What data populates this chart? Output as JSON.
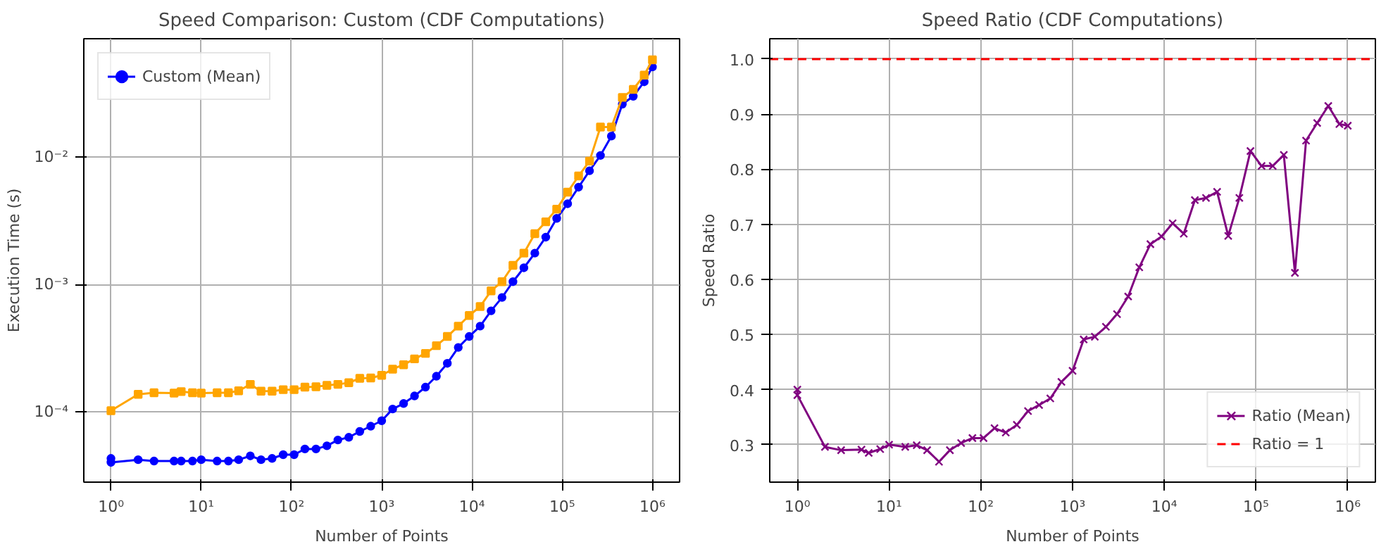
{
  "chart_data": [
    {
      "type": "line",
      "title": "Speed Comparison: Custom (CDF Computations)",
      "xlabel": "Number of Points",
      "ylabel": "Execution Time (s)",
      "log": "xy",
      "grid": true,
      "legend": "top left",
      "x": [
        1,
        1,
        2,
        3,
        5,
        6,
        8,
        10,
        15,
        20,
        26,
        35,
        46,
        61,
        81,
        107,
        141,
        187,
        247,
        327,
        432,
        572,
        756,
        1000,
        1322,
        1748,
        2310,
        3054,
        4037,
        5337,
        7055,
        9326,
        12328,
        16296,
        21542,
        28476,
        37642,
        49758,
        65774,
        86946,
        114934,
        151930,
        200833,
        265478,
        350931,
        463891,
        613209,
        810591,
        1000000
      ],
      "xlim": [
        0.5,
        2000000
      ],
      "xticks": [
        {
          "value": 1,
          "label": "10⁰"
        },
        {
          "value": 10,
          "label": "10¹"
        },
        {
          "value": 100,
          "label": "10²"
        },
        {
          "value": 1000,
          "label": "10³"
        },
        {
          "value": 10000,
          "label": "10⁴"
        },
        {
          "value": 100000,
          "label": "10⁵"
        },
        {
          "value": 1000000,
          "label": "10⁶"
        }
      ],
      "ylim": [
        2.8e-05,
        0.085
      ],
      "yticks": [
        {
          "value": 0.0001,
          "label": "10⁻⁴"
        },
        {
          "value": 0.001,
          "label": "10⁻³"
        },
        {
          "value": 0.01,
          "label": "10⁻²"
        }
      ],
      "series": [
        {
          "name": "Custom (Mean)",
          "color": "#0000ff",
          "marker": "circle",
          "values": [
            4.3e-05,
            4e-05,
            4.2e-05,
            4.1e-05,
            4.1e-05,
            4.1e-05,
            4.1e-05,
            4.2e-05,
            4.1e-05,
            4.1e-05,
            4.2e-05,
            4.5e-05,
            4.2e-05,
            4.3e-05,
            4.6e-05,
            4.6e-05,
            5.1e-05,
            5.1e-05,
            5.4e-05,
            6e-05,
            6.3e-05,
            7e-05,
            7.7e-05,
            8.5e-05,
            0.000105,
            0.000116,
            0.000133,
            0.000156,
            0.00019,
            0.00024,
            0.00032,
            0.00039,
            0.00047,
            0.00062,
            0.00079,
            0.00105,
            0.00135,
            0.00176,
            0.00235,
            0.0033,
            0.0043,
            0.0058,
            0.0078,
            0.0103,
            0.0146,
            0.026,
            0.03,
            0.039,
            0.051
          ]
        },
        {
          "color": "#ffa500",
          "marker": "square",
          "values": [
            null,
            0.000102,
            0.000137,
            0.000141,
            0.00014,
            0.000144,
            0.000141,
            0.00014,
            0.000141,
            0.000141,
            0.000146,
            0.000164,
            0.000145,
            0.000145,
            0.000149,
            0.000149,
            0.000156,
            0.000157,
            0.000161,
            0.000164,
            0.000169,
            0.000183,
            0.000184,
            0.000193,
            0.000216,
            0.000234,
            0.00026,
            0.000287,
            0.00033,
            0.00039,
            0.00047,
            0.00057,
            0.00067,
            0.00089,
            0.00105,
            0.00141,
            0.00176,
            0.0025,
            0.0031,
            0.0039,
            0.0053,
            0.0071,
            0.0093,
            0.0172,
            0.0172,
            0.0294,
            0.034,
            0.044,
            0.058
          ]
        }
      ]
    },
    {
      "type": "line",
      "title": "Speed Ratio (CDF Computations)",
      "xlabel": "Number of Points",
      "ylabel": "Speed Ratio",
      "log": "x",
      "grid": true,
      "legend": "bottom right",
      "x": [
        1,
        1,
        2,
        3,
        5,
        6,
        8,
        10,
        15,
        20,
        26,
        35,
        46,
        61,
        81,
        107,
        141,
        187,
        247,
        327,
        432,
        572,
        756,
        1000,
        1322,
        1748,
        2310,
        3054,
        4037,
        5337,
        7055,
        9326,
        12328,
        16296,
        21542,
        28476,
        37642,
        49758,
        65774,
        86946,
        114934,
        151930,
        200833,
        265478,
        350931,
        463891,
        613209,
        810591,
        1000000
      ],
      "xlim": [
        0.5,
        2000000
      ],
      "xticks": [
        {
          "value": 1,
          "label": "10⁰"
        },
        {
          "value": 10,
          "label": "10¹"
        },
        {
          "value": 100,
          "label": "10²"
        },
        {
          "value": 1000,
          "label": "10³"
        },
        {
          "value": 10000,
          "label": "10⁴"
        },
        {
          "value": 100000,
          "label": "10⁵"
        },
        {
          "value": 1000000,
          "label": "10⁶"
        }
      ],
      "ylim": [
        0.232,
        1.037
      ],
      "yticks": [
        {
          "value": 0.3,
          "label": "0.3"
        },
        {
          "value": 0.4,
          "label": "0.4"
        },
        {
          "value": 0.5,
          "label": "0.5"
        },
        {
          "value": 0.6,
          "label": "0.6"
        },
        {
          "value": 0.7,
          "label": "0.7"
        },
        {
          "value": 0.8,
          "label": "0.8"
        },
        {
          "value": 0.9,
          "label": "0.9"
        },
        {
          "value": 1.0,
          "label": "1.0"
        }
      ],
      "series": [
        {
          "name": "Ratio (Mean)",
          "color": "#800080",
          "marker": "cross",
          "values": [
            0.4,
            0.39,
            0.296,
            0.29,
            0.291,
            0.285,
            0.292,
            0.3,
            0.296,
            0.299,
            0.29,
            0.269,
            0.29,
            0.303,
            0.312,
            0.312,
            0.33,
            0.322,
            0.336,
            0.361,
            0.372,
            0.384,
            0.414,
            0.434,
            0.491,
            0.496,
            0.514,
            0.537,
            0.569,
            0.622,
            0.664,
            0.678,
            0.702,
            0.683,
            0.744,
            0.748,
            0.759,
            0.679,
            0.748,
            0.833,
            0.806,
            0.806,
            0.826,
            0.612,
            0.852,
            0.884,
            0.915,
            0.882,
            0.879
          ]
        }
      ],
      "ref_lines": [
        {
          "axis": "y",
          "value": 1,
          "label": "Ratio = 1",
          "color": "#ff0000",
          "line_style": "dashed"
        }
      ]
    }
  ]
}
